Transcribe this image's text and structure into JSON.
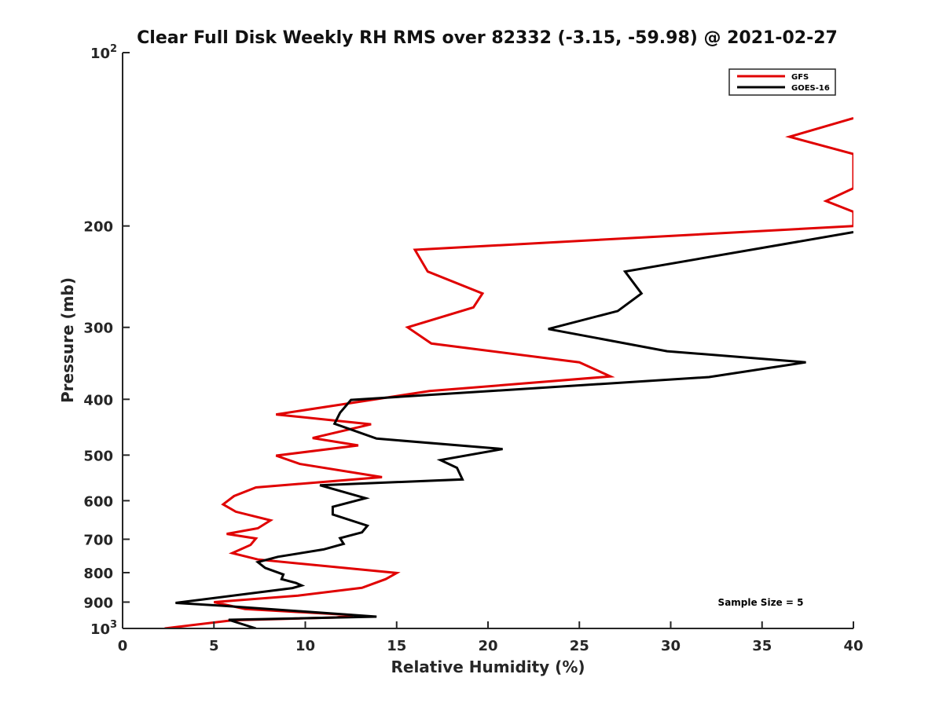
{
  "chart_data": {
    "type": "line",
    "title": "Clear Full Disk Weekly RH RMS over 82332 (-3.15, -59.98) @ 2021-02-27",
    "xlabel": "Relative Humidity (%)",
    "ylabel": "Pressure (mb)",
    "xlim": [
      0,
      40
    ],
    "ylim": [
      1000,
      100
    ],
    "y_scale": "log",
    "y_reversed": true,
    "x_ticks": [
      0,
      5,
      10,
      15,
      20,
      25,
      30,
      35,
      40
    ],
    "y_ticks": [
      {
        "value": 100,
        "label": "10",
        "exp": "2"
      },
      {
        "value": 200,
        "label": "200"
      },
      {
        "value": 300,
        "label": "300"
      },
      {
        "value": 400,
        "label": "400"
      },
      {
        "value": 500,
        "label": "500"
      },
      {
        "value": 600,
        "label": "600"
      },
      {
        "value": 700,
        "label": "700"
      },
      {
        "value": 800,
        "label": "800"
      },
      {
        "value": 900,
        "label": "900"
      },
      {
        "value": 1000,
        "label": "10",
        "exp": "3"
      }
    ],
    "grid": false,
    "legend_position": "top-right",
    "annotation": "Sample Size = 5",
    "series": [
      {
        "name": "GFS",
        "color": "#e00000",
        "points": [
          [
            40.0,
            130
          ],
          [
            36.5,
            140
          ],
          [
            40.0,
            150
          ],
          [
            40.0,
            172
          ],
          [
            38.5,
            181
          ],
          [
            40.0,
            189
          ],
          [
            40.0,
            200
          ],
          [
            16.0,
            220
          ],
          [
            16.7,
            240
          ],
          [
            19.7,
            262
          ],
          [
            19.2,
            277
          ],
          [
            15.6,
            300
          ],
          [
            16.9,
            320
          ],
          [
            25.0,
            345
          ],
          [
            26.7,
            365
          ],
          [
            16.8,
            387
          ],
          [
            8.4,
            425
          ],
          [
            13.6,
            442
          ],
          [
            10.4,
            467
          ],
          [
            12.9,
            481
          ],
          [
            8.4,
            501
          ],
          [
            9.7,
            518
          ],
          [
            14.2,
            546
          ],
          [
            7.3,
            569
          ],
          [
            6.1,
            589
          ],
          [
            5.5,
            609
          ],
          [
            6.2,
            627
          ],
          [
            8.1,
            649
          ],
          [
            7.4,
            670
          ],
          [
            5.7,
            685
          ],
          [
            7.3,
            698
          ],
          [
            7.0,
            716
          ],
          [
            6.0,
            740
          ],
          [
            7.4,
            759
          ],
          [
            15.0,
            801
          ],
          [
            14.4,
            821
          ],
          [
            13.1,
            850
          ],
          [
            9.6,
            877
          ],
          [
            5.0,
            900
          ],
          [
            6.7,
            925
          ],
          [
            12.6,
            948
          ],
          [
            11.7,
            957
          ],
          [
            6.0,
            968
          ],
          [
            2.3,
            1000
          ]
        ]
      },
      {
        "name": "GOES-16",
        "color": "#000000",
        "points": [
          [
            40.0,
            205
          ],
          [
            27.5,
            240
          ],
          [
            28.4,
            262
          ],
          [
            27.1,
            281
          ],
          [
            23.3,
            302
          ],
          [
            29.8,
            330
          ],
          [
            37.4,
            345
          ],
          [
            32.1,
            366
          ],
          [
            12.5,
            401
          ],
          [
            11.9,
            422
          ],
          [
            11.6,
            441
          ],
          [
            13.9,
            468
          ],
          [
            20.8,
            488
          ],
          [
            17.4,
            510
          ],
          [
            18.3,
            526
          ],
          [
            18.6,
            551
          ],
          [
            10.8,
            564
          ],
          [
            13.3,
            594
          ],
          [
            11.5,
            615
          ],
          [
            11.5,
            634
          ],
          [
            13.4,
            663
          ],
          [
            13.1,
            681
          ],
          [
            11.9,
            697
          ],
          [
            12.1,
            713
          ],
          [
            11.0,
            729
          ],
          [
            8.5,
            751
          ],
          [
            7.4,
            767
          ],
          [
            7.8,
            785
          ],
          [
            8.8,
            806
          ],
          [
            8.7,
            821
          ],
          [
            9.5,
            834
          ],
          [
            9.8,
            842
          ],
          [
            9.3,
            851
          ],
          [
            2.9,
            903
          ],
          [
            5.4,
            913
          ],
          [
            13.9,
            954
          ],
          [
            5.8,
            966
          ],
          [
            7.3,
            1000
          ]
        ]
      }
    ]
  }
}
